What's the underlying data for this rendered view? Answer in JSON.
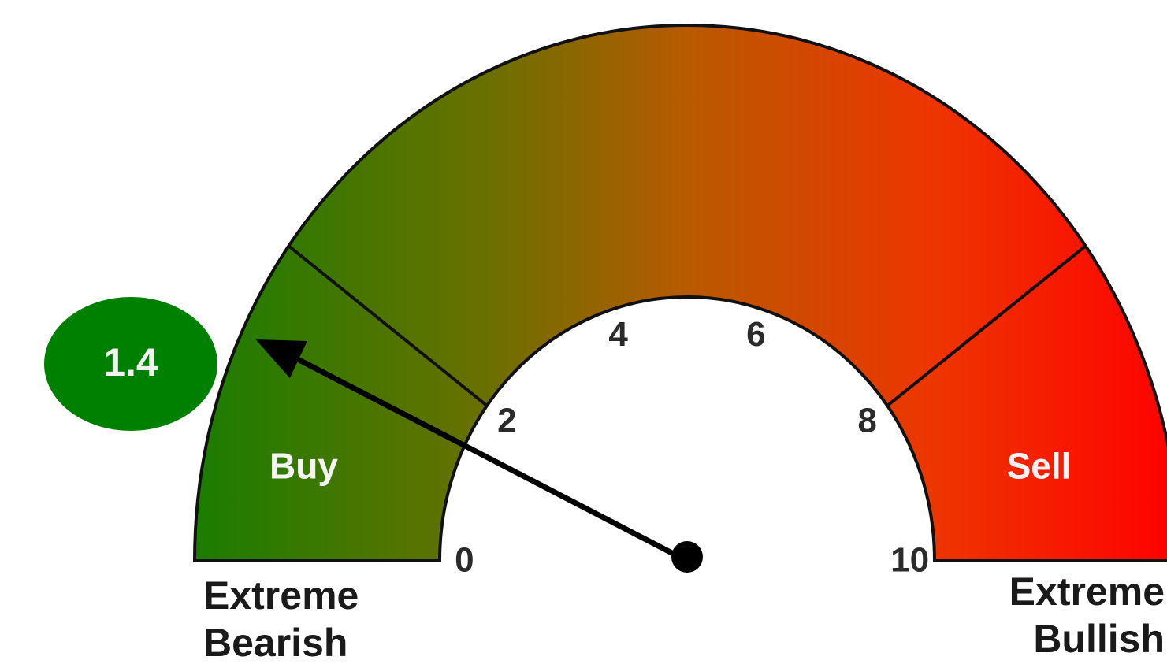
{
  "chart_data": {
    "type": "gauge",
    "value": 1.4,
    "range": [
      0,
      10
    ],
    "ticks": [
      0,
      2,
      4,
      6,
      8,
      10
    ],
    "bands": [
      {
        "name": "Buy",
        "from": 0,
        "to": 2
      },
      {
        "name": "Sell",
        "from": 8,
        "to": 10
      }
    ],
    "min_label": [
      "Extreme",
      "Bearish"
    ],
    "max_label": [
      "Extreme",
      "Bullish"
    ],
    "value_color": "#008000"
  }
}
